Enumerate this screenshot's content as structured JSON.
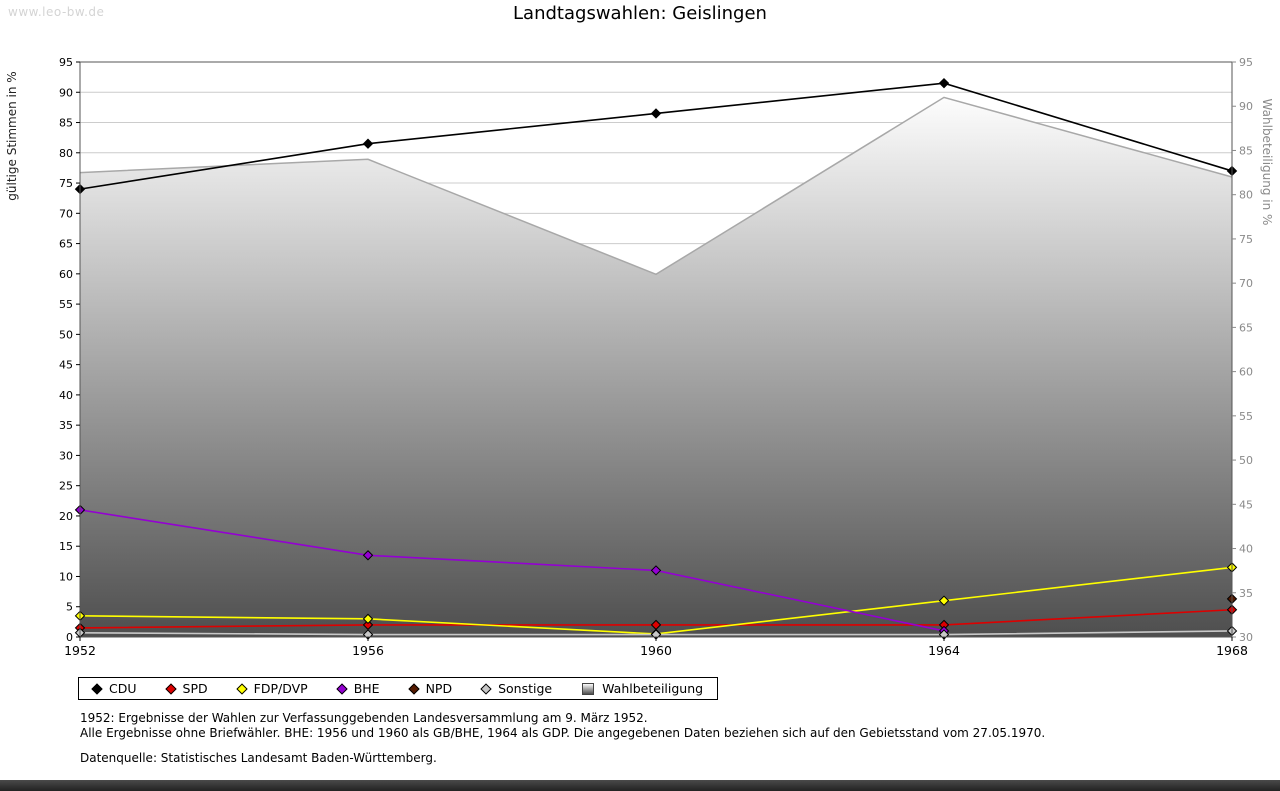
{
  "watermark": "www.leo-bw.de",
  "title": "Landtagswahlen: Geislingen",
  "chart_data": {
    "type": "line",
    "title": "Landtagswahlen: Geislingen",
    "x": [
      "1952",
      "1956",
      "1960",
      "1964",
      "1968"
    ],
    "left_axis": {
      "label": "gültige Stimmen in %",
      "min": 0,
      "max": 95,
      "tick_step": 5
    },
    "right_axis": {
      "label": "Wahlbeteiligung in %",
      "min": 30,
      "max": 95,
      "tick_step": 5
    },
    "grid": true,
    "legend_position": "bottom",
    "series": [
      {
        "name": "CDU",
        "color": "#000000",
        "marker": "diamond",
        "axis": "left",
        "values": [
          74,
          81.5,
          86.5,
          91.5,
          77
        ]
      },
      {
        "name": "SPD",
        "color": "#dd0000",
        "marker": "diamond",
        "axis": "left",
        "values": [
          1.5,
          2,
          2,
          2,
          4.5
        ]
      },
      {
        "name": "FDP/DVP",
        "color": "#ffff00",
        "marker": "diamond",
        "axis": "left",
        "values": [
          3.5,
          3,
          0.5,
          6,
          11.5
        ]
      },
      {
        "name": "BHE",
        "color": "#9400d3",
        "marker": "diamond",
        "axis": "left",
        "values": [
          21,
          13.5,
          11,
          1,
          null
        ]
      },
      {
        "name": "NPD",
        "color": "#551a00",
        "marker": "diamond",
        "axis": "left",
        "values": [
          null,
          null,
          null,
          null,
          6.3
        ]
      },
      {
        "name": "Sonstige",
        "color": "#c8c8c8",
        "marker": "diamond",
        "axis": "left",
        "values": [
          0.7,
          0.4,
          0.4,
          0.4,
          1
        ]
      }
    ],
    "area_series": {
      "name": "Wahlbeteiligung",
      "axis": "right",
      "values": [
        82.5,
        84,
        71,
        91,
        82
      ],
      "stroke": "#a8a8a8",
      "fill_top": "#fdfdfd",
      "fill_bottom": "#4e4e4e",
      "legend_color": "#b8b8b8"
    }
  },
  "footnotes": {
    "line1": "1952: Ergebnisse der Wahlen zur Verfassunggebenden Landesversammlung am 9. März 1952.",
    "line2": "Alle Ergebnisse ohne Briefwähler. BHE: 1956 und 1960 als GB/BHE, 1964 als GDP. Die angegebenen Daten beziehen sich auf den Gebietsstand vom 27.05.1970.",
    "source": "Datenquelle: Statistisches Landesamt Baden-Württemberg."
  }
}
